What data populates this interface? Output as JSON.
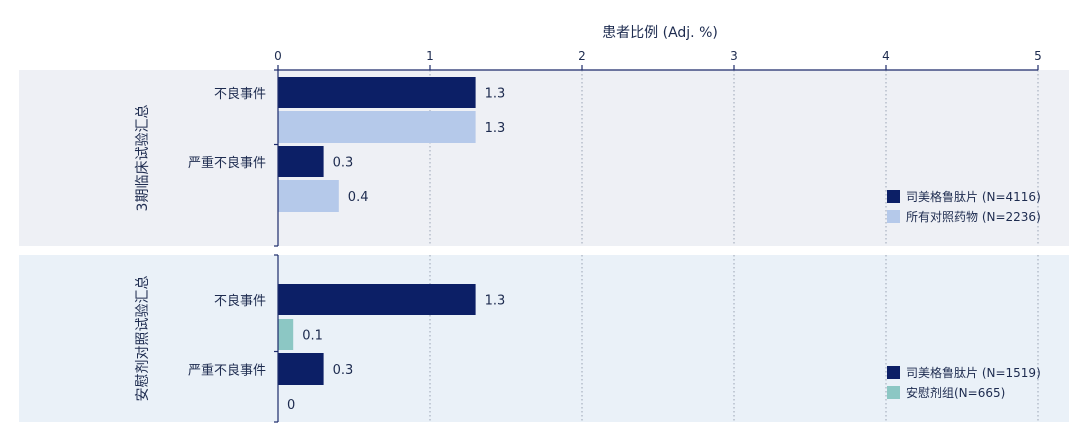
{
  "chart_data": {
    "type": "bar",
    "orientation": "horizontal",
    "xlabel": "患者比例 (Adj. %)",
    "xlim": [
      0,
      5
    ],
    "xticks": [
      0,
      1,
      2,
      3,
      4,
      5
    ],
    "grid": "vertical dotted",
    "panels": [
      {
        "label": "3期临床试验汇总",
        "background": "#eef0f5",
        "categories": [
          "不良事件",
          "严重不良事件"
        ],
        "series": [
          {
            "name": "司美格鲁肽片 (N=4116)",
            "color": "#0c1f66",
            "values": [
              1.3,
              0.3
            ],
            "labels": [
              "1.3",
              "0.3"
            ]
          },
          {
            "name": "所有对照药物 (N=2236)",
            "color": "#b5c9ea",
            "values": [
              1.3,
              0.4
            ],
            "labels": [
              "1.3",
              "0.4"
            ]
          }
        ]
      },
      {
        "label": "安慰剂对照试验汇总",
        "background": "#eaf1f8",
        "categories": [
          "不良事件",
          "严重不良事件"
        ],
        "series": [
          {
            "name": "司美格鲁肽片 (N=1519)",
            "color": "#0c1f66",
            "values": [
              1.3,
              0.3
            ],
            "labels": [
              "1.3",
              "0.3"
            ]
          },
          {
            "name": "安慰剂组(N=665)",
            "color": "#8cc7c4",
            "values": [
              0.1,
              0
            ],
            "labels": [
              "0.1",
              "0"
            ]
          }
        ]
      }
    ]
  }
}
